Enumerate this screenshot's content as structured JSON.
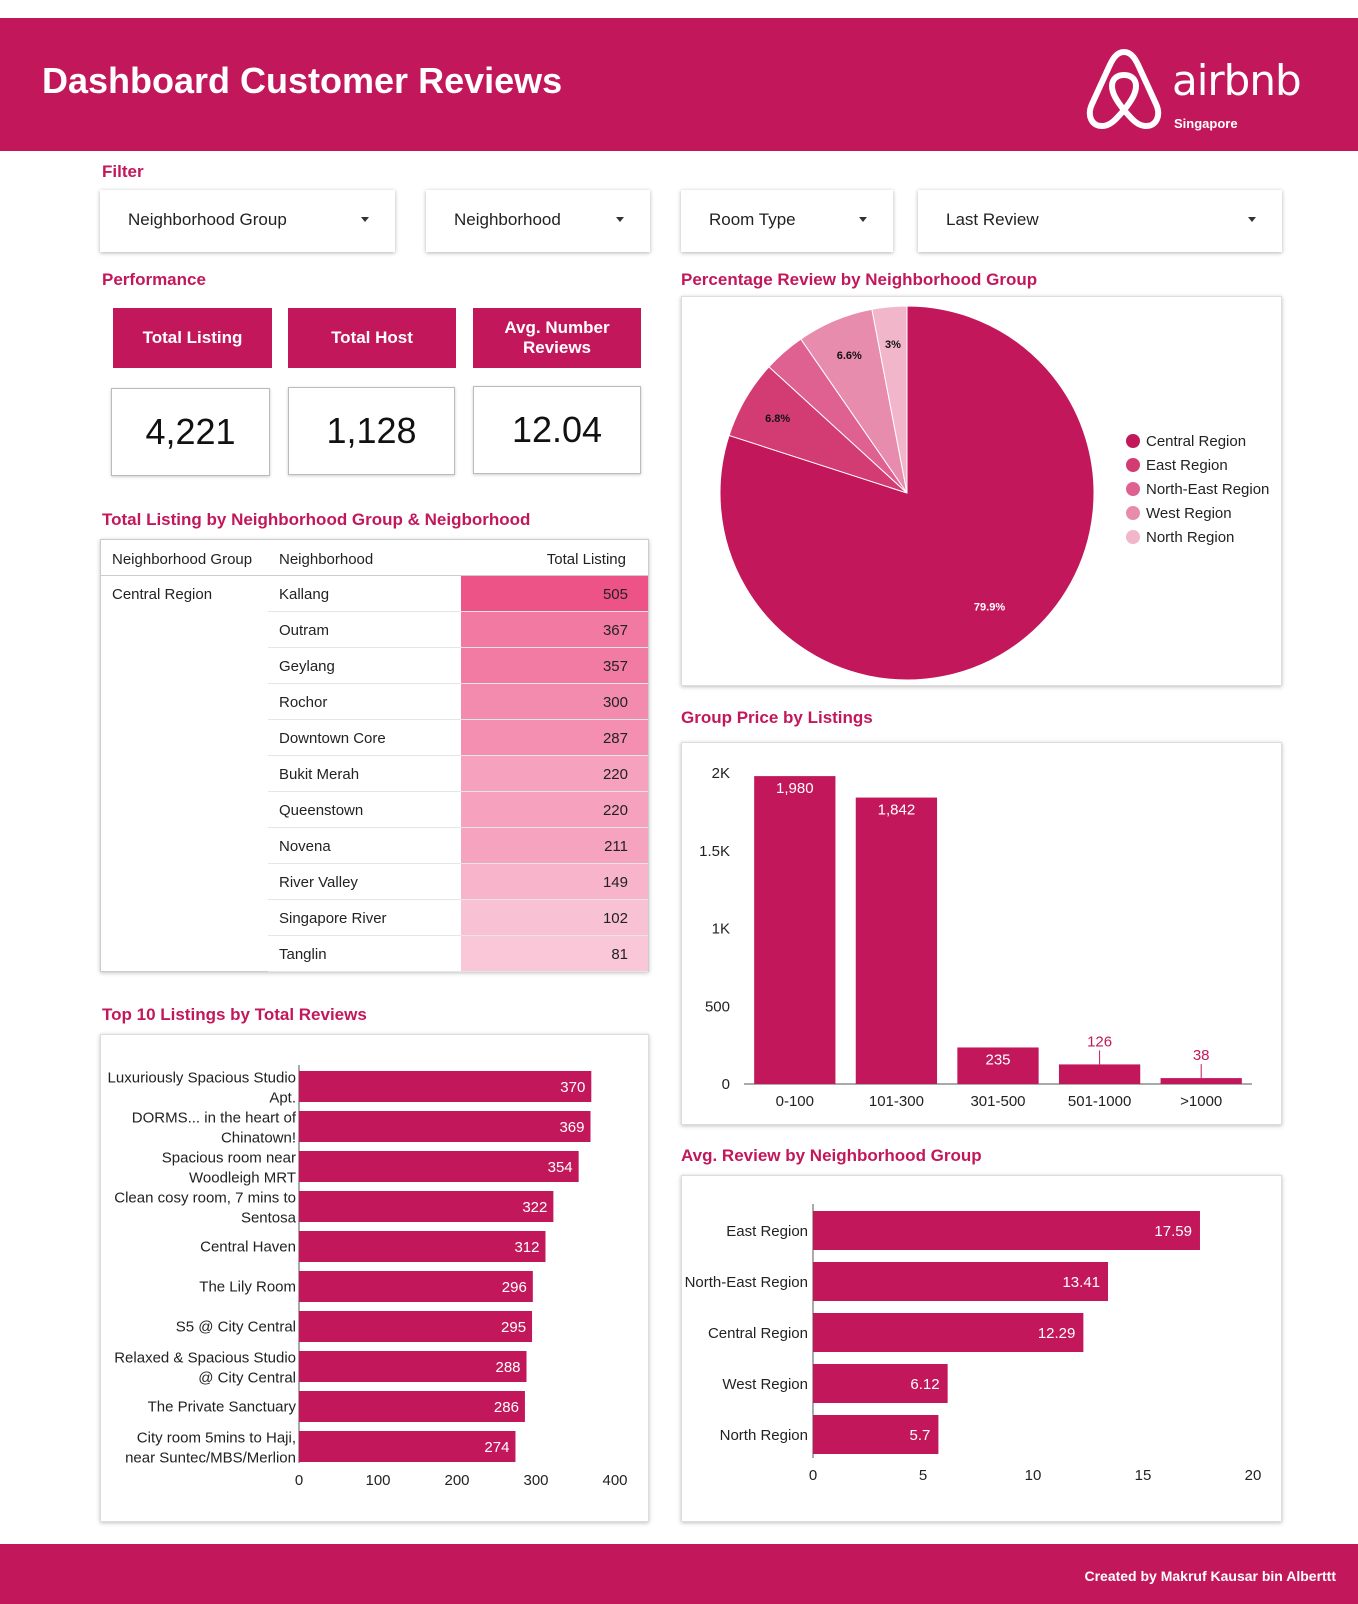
{
  "header": {
    "title": "Dashboard Customer Reviews",
    "logo_word": "airbnb",
    "logo_sub": "Singapore",
    "brand_color": "#c2185b",
    "logo_icon": "airbnb-belo-icon"
  },
  "filter": {
    "title": "Filter",
    "dropdowns": [
      {
        "label": "Neighborhood Group"
      },
      {
        "label": "Neighborhood"
      },
      {
        "label": "Room Type"
      },
      {
        "label": "Last Review"
      }
    ]
  },
  "performance": {
    "title": "Performance",
    "kpis": [
      {
        "label": "Total Listing",
        "value": "4,221"
      },
      {
        "label": "Total Host",
        "value": "1,128"
      },
      {
        "label": "Avg. Number Reviews",
        "value": "12.04"
      }
    ]
  },
  "listing_table": {
    "title": "Total Listing by Neighborhood Group & Neigborhood",
    "headers": [
      "Neighborhood Group",
      "Neighborhood",
      "Total Listing"
    ],
    "group": "Central Region",
    "rows": [
      {
        "neighborhood": "Kallang",
        "total": "505"
      },
      {
        "neighborhood": "Outram",
        "total": "367"
      },
      {
        "neighborhood": "Geylang",
        "total": "357"
      },
      {
        "neighborhood": "Rochor",
        "total": "300"
      },
      {
        "neighborhood": "Downtown Core",
        "total": "287"
      },
      {
        "neighborhood": "Bukit Merah",
        "total": "220"
      },
      {
        "neighborhood": "Queenstown",
        "total": "220"
      },
      {
        "neighborhood": "Novena",
        "total": "211"
      },
      {
        "neighborhood": "River Valley",
        "total": "149"
      },
      {
        "neighborhood": "Singapore River",
        "total": "102"
      },
      {
        "neighborhood": "Tanglin",
        "total": "81"
      }
    ]
  },
  "chart_titles": {
    "pie": "Percentage Review by Neighborhood Group",
    "price": "Group Price by Listings",
    "top10": "Top 10 Listings by Total Reviews",
    "avg": "Avg. Review by Neighborhood Group"
  },
  "footer": {
    "credit": "Created by Makruf Kausar bin Alberttt"
  },
  "chart_data": [
    {
      "type": "pie",
      "title": "Percentage Review by Neighborhood Group",
      "labels": [
        "Central Region",
        "East Region",
        "North-East Region",
        "West Region",
        "North Region"
      ],
      "values": [
        79.9,
        6.8,
        3.6,
        6.6,
        3
      ],
      "data_labels": [
        "79.9%",
        "6.8%",
        "",
        "6.6%",
        "3%"
      ],
      "colors": [
        "#c2185b",
        "#d33c73",
        "#de6191",
        "#e88cad",
        "#f2b6cb"
      ],
      "legend_position": "right"
    },
    {
      "type": "bar",
      "title": "Group Price by Listings",
      "categories": [
        "0-100",
        "101-300",
        "301-500",
        "501-1000",
        ">1000"
      ],
      "values": [
        1980,
        1842,
        235,
        126,
        38
      ],
      "data_labels": [
        "1,980",
        "1,842",
        "235",
        "126",
        "38"
      ],
      "yticks": [
        "0",
        "500",
        "1K",
        "1.5K",
        "2K"
      ],
      "ylim": [
        0,
        2000
      ],
      "color": "#c2185b"
    },
    {
      "type": "bar",
      "orientation": "horizontal",
      "title": "Top 10 Listings by Total Reviews",
      "categories": [
        [
          "Luxuriously Spacious Studio",
          "Apt."
        ],
        [
          "DORMS... in the heart of",
          "Chinatown!"
        ],
        [
          "Spacious room near",
          "Woodleigh MRT"
        ],
        [
          "Clean cosy room, 7 mins to",
          "Sentosa"
        ],
        [
          "Central Haven"
        ],
        [
          "The Lily Room"
        ],
        [
          "S5 @ City Central"
        ],
        [
          "Relaxed & Spacious Studio",
          "@ City Central"
        ],
        [
          "The Private Sanctuary"
        ],
        [
          "City room 5mins to Haji,",
          "near Suntec/MBS/Merlion"
        ]
      ],
      "values": [
        370,
        369,
        354,
        322,
        312,
        296,
        295,
        288,
        286,
        274
      ],
      "xticks": [
        "0",
        "100",
        "200",
        "300",
        "400"
      ],
      "xlim": [
        0,
        400
      ],
      "color": "#c2185b"
    },
    {
      "type": "bar",
      "orientation": "horizontal",
      "title": "Avg. Review by Neighborhood Group",
      "categories": [
        "East Region",
        "North-East Region",
        "Central Region",
        "West Region",
        "North Region"
      ],
      "values": [
        17.59,
        13.41,
        12.29,
        6.12,
        5.7
      ],
      "data_labels": [
        "17.59",
        "13.41",
        "12.29",
        "6.12",
        "5.7"
      ],
      "xticks": [
        "0",
        "5",
        "10",
        "15",
        "20"
      ],
      "xlim": [
        0,
        20
      ],
      "color": "#c2185b"
    }
  ]
}
